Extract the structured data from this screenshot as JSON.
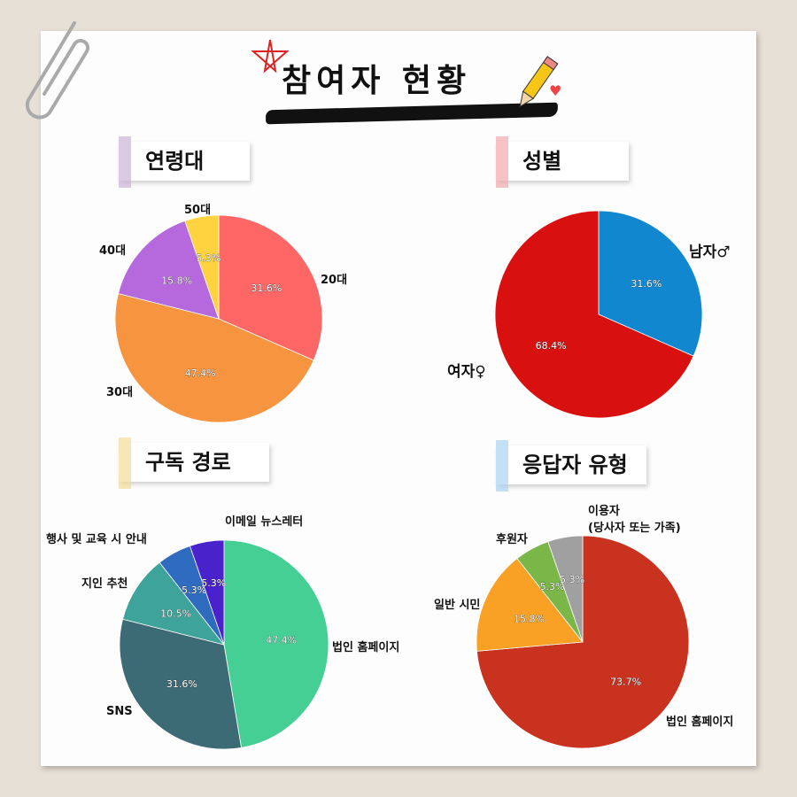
{
  "title": "참여자 현황",
  "chart_data": [
    {
      "type": "pie",
      "title": "연령대",
      "tape_color": "#cbb5d9",
      "categories": [
        "20대",
        "30대",
        "40대",
        "50대"
      ],
      "values": [
        31.6,
        47.4,
        15.8,
        5.3
      ],
      "labels": [
        "31.6%",
        "47.4%",
        "15.8%",
        "5.3%"
      ],
      "colors": [
        "#ff6666",
        "#f79440",
        "#b569dc",
        "#ffd23f"
      ]
    },
    {
      "type": "pie",
      "title": "성별",
      "tape_color": "#f2a8ae",
      "categories": [
        "남자♂",
        "여자♀"
      ],
      "values": [
        31.6,
        68.4
      ],
      "labels": [
        "31.6%",
        "68.4%"
      ],
      "colors": [
        "#1187cf",
        "#d91010"
      ]
    },
    {
      "type": "pie",
      "title": "구독 경로",
      "tape_color": "#f4dc9a",
      "categories": [
        "법인 홈페이지",
        "SNS",
        "지인 추천",
        "행사 및 교육 시 안내",
        "이메일 뉴스레터"
      ],
      "values": [
        47.4,
        31.6,
        10.5,
        5.3,
        5.3
      ],
      "labels": [
        "47.4%",
        "31.6%",
        "10.5%",
        "5.3%",
        "5.3%"
      ],
      "colors": [
        "#45cf94",
        "#3c6a75",
        "#3ea39a",
        "#2f6bbf",
        "#4a22cc"
      ]
    },
    {
      "type": "pie",
      "title": "응답자 유형",
      "tape_color": "#a9d4ef",
      "categories": [
        "법인 홈페이지",
        "일반 시민",
        "후원자",
        "이용자\n(당사자 또는 가족)"
      ],
      "values": [
        73.7,
        15.8,
        5.3,
        5.3
      ],
      "labels": [
        "73.7%",
        "15.8%",
        "5.3%",
        "5.3%"
      ],
      "colors": [
        "#c8321e",
        "#f9a125",
        "#7ab648",
        "#a0a0a0"
      ]
    }
  ]
}
